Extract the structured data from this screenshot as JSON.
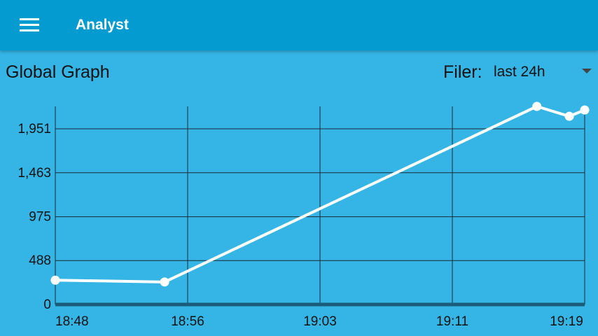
{
  "appbar": {
    "title": "Analyst",
    "menu_icon": "hamburger-menu-icon"
  },
  "page": {
    "title": "Global Graph"
  },
  "filter": {
    "label": "Filer:",
    "selected": "last 24h"
  },
  "chart_data": {
    "type": "line",
    "title": "",
    "xlabel": "",
    "ylabel": "",
    "x_ticks": [
      "18:48",
      "18:56",
      "19:03",
      "19:11",
      "19:19"
    ],
    "y_ticks": [
      "0",
      "488",
      "975",
      "1,463",
      "1,951"
    ],
    "y_tick_values": [
      0,
      488,
      975,
      1463,
      1951
    ],
    "xlim_minutes": [
      0,
      31
    ],
    "ylim": [
      0,
      2200
    ],
    "grid": true,
    "series": [
      {
        "points": [
          {
            "x_minutes": 0,
            "y": 270
          },
          {
            "x_minutes": 6.4,
            "y": 250
          },
          {
            "x_minutes": 28.2,
            "y": 2200
          },
          {
            "x_minutes": 30.1,
            "y": 2090
          },
          {
            "x_minutes": 31,
            "y": 2160
          }
        ],
        "color": "#ffffff"
      }
    ],
    "colors": {
      "background": "#35b5e6",
      "grid": "#1d2b33",
      "axis": "#1a5c7a",
      "line": "#ffffff"
    }
  }
}
